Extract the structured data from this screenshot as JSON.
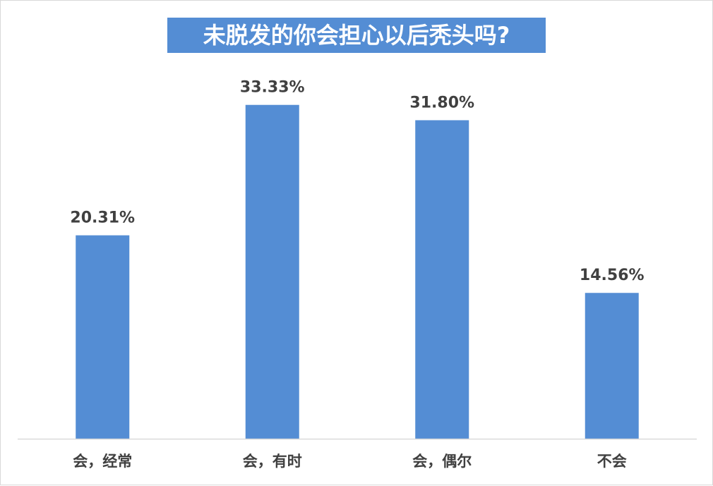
{
  "chart_data": {
    "type": "bar",
    "title": "未脱发的你会担心以后秃头吗?",
    "categories": [
      "会，经常",
      "会，有时",
      "会，偶尔",
      "不会"
    ],
    "values": [
      20.31,
      33.33,
      31.8,
      14.56
    ],
    "value_labels": [
      "20.31%",
      "33.33%",
      "31.80%",
      "14.56%"
    ],
    "ylim": [
      0,
      40
    ],
    "grid": false,
    "legend": "none",
    "bar_color": "#548dd4",
    "title_background": "#548dd4",
    "axis_color": "#d9d9d9"
  }
}
